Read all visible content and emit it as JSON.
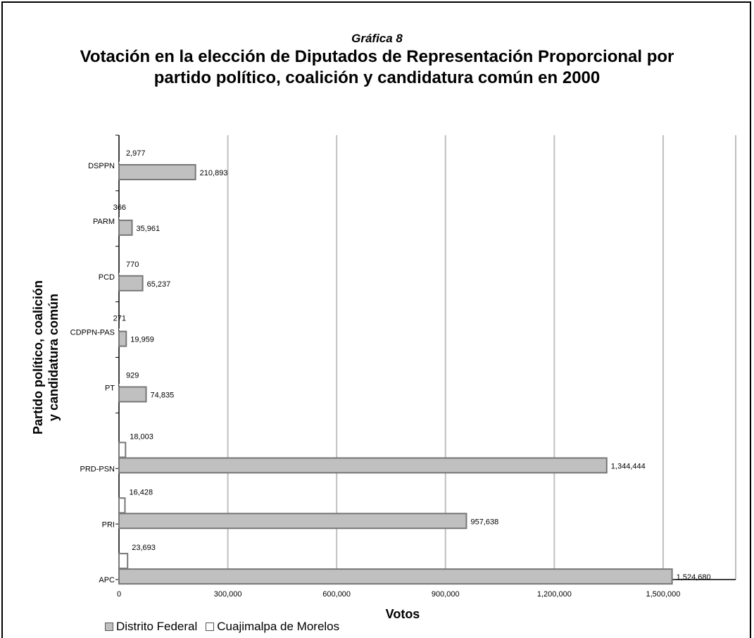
{
  "chart_data": {
    "type": "bar",
    "orientation": "horizontal",
    "subtitle": "Gráfica 8",
    "title": "Votación en la elección de Diputados de Representación Proporcional por partido político, coalición y candidatura común en 2000",
    "xlabel": "Votos",
    "ylabel_lines": [
      "Partido político, coalición",
      "y candidatura común"
    ],
    "xlim": [
      0,
      1700000
    ],
    "xticks": [
      0,
      300000,
      600000,
      900000,
      1200000,
      1500000
    ],
    "xtick_labels": [
      "0",
      "300,000",
      "600,000",
      "900,000",
      "1,200,000",
      "1,500,000"
    ],
    "grid": true,
    "legend_position": "bottom-left",
    "categories": [
      "DSPPN",
      "PARM",
      "PCD",
      "CDPPN-PAS",
      "PT",
      "PRD-PSN",
      "PRI",
      "APC"
    ],
    "series": [
      {
        "name": "Distrito Federal",
        "color": "#c0c0c0",
        "values": [
          210893,
          35961,
          65237,
          19959,
          74835,
          1344444,
          957638,
          1524680
        ],
        "labels": [
          "210,893",
          "35,961",
          "65,237",
          "19,959",
          "74,835",
          "1,344,444",
          "957,638",
          "1,524,680"
        ]
      },
      {
        "name": "Cuajimalpa de Morelos",
        "color": "#ffffff",
        "values": [
          2977,
          366,
          770,
          271,
          929,
          18003,
          16428,
          23693
        ],
        "labels": [
          "2,977",
          "366",
          "770",
          "271",
          "929",
          "18,003",
          "16,428",
          "23,693"
        ]
      }
    ]
  }
}
